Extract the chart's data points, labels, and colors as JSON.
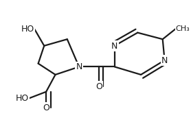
{
  "bg_color": "#ffffff",
  "bond_color": "#1a1a1a",
  "text_color": "#1a1a1a",
  "lw": 1.6,
  "fs": 9.0,
  "dbo": 0.016
}
